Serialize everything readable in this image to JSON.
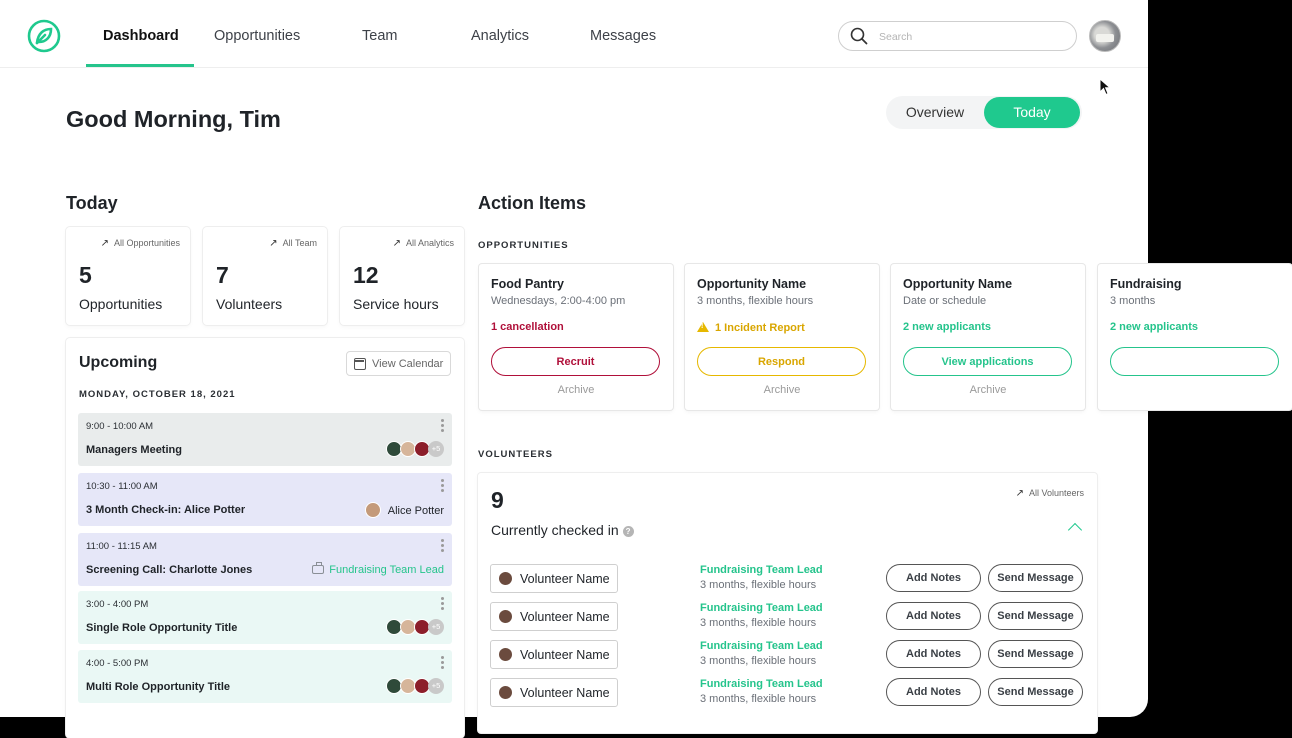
{
  "nav": {
    "tabs": [
      "Dashboard",
      "Opportunities",
      "Team",
      "Analytics",
      "Messages"
    ],
    "active": "Dashboard",
    "search_placeholder": "Search"
  },
  "header": {
    "greeting": "Good Morning, Tim",
    "toggle": {
      "overview": "Overview",
      "today": "Today",
      "selected": "Today"
    }
  },
  "today": {
    "title": "Today",
    "stats": [
      {
        "link": "All Opportunities",
        "value": "5",
        "label": "Opportunities"
      },
      {
        "link": "All Team",
        "value": "7",
        "label": "Volunteers"
      },
      {
        "link": "All Analytics",
        "value": "12",
        "label": "Service hours"
      }
    ]
  },
  "upcoming": {
    "title": "Upcoming",
    "view_calendar": "View Calendar",
    "date": "MONDAY, OCTOBER 18, 2021",
    "events": [
      {
        "time": "9:00 - 10:00 AM",
        "title": "Managers Meeting",
        "extra": "+5",
        "color": "#e9ecec"
      },
      {
        "time": "10:30 - 11:00 AM",
        "title": "3 Month Check-in: Alice Potter",
        "person": "Alice Potter",
        "color": "#e6e7f8"
      },
      {
        "time": "11:00 - 11:15 AM",
        "title": "Screening Call: Charlotte Jones",
        "role": "Fundraising Team Lead",
        "color": "#e6e7f8"
      },
      {
        "time": "3:00 - 4:00 PM",
        "title": "Single Role Opportunity Title",
        "extra": "+5",
        "color": "#eaf8f5"
      },
      {
        "time": "4:00 - 5:00 PM",
        "title": "Multi Role Opportunity Title",
        "extra": "+5",
        "color": "#eaf8f5"
      }
    ]
  },
  "action_items": {
    "title": "Action Items",
    "opportunities_caption": "OPPORTUNITIES",
    "cards": [
      {
        "name": "Food Pantry",
        "sub": "Wednesdays, 2:00-4:00 pm",
        "status": "1 cancellation",
        "status_color": "#b0103a",
        "button": "Recruit",
        "archive": "Archive"
      },
      {
        "name": "Opportunity Name",
        "sub": "3 months, flexible hours",
        "status": "1 Incident Report",
        "status_color": "#d9a600",
        "button": "Respond",
        "archive": "Archive"
      },
      {
        "name": "Opportunity Name",
        "sub": "Date or schedule",
        "status": "2 new applicants",
        "status_color": "#25c48c",
        "button": "View applications",
        "archive": "Archive"
      },
      {
        "name": "Fundraising",
        "sub": "3 months",
        "status": "2 new applicants",
        "status_color": "#25c48c",
        "button": "",
        "archive": ""
      }
    ],
    "volunteers_caption": "VOLUNTEERS",
    "volunteers": {
      "count": "9",
      "all_link": "All Volunteers",
      "checked_in": "Currently checked in",
      "rows": [
        {
          "name": "Volunteer Name",
          "role": "Fundraising Team Lead",
          "sub": "3 months, flexible hours",
          "notes": "Add Notes",
          "message": "Send Message"
        },
        {
          "name": "Volunteer Name",
          "role": "Fundraising Team Lead",
          "sub": "3 months, flexible hours",
          "notes": "Add Notes",
          "message": "Send Message"
        },
        {
          "name": "Volunteer Name",
          "role": "Fundraising Team Lead",
          "sub": "3 months, flexible hours",
          "notes": "Add Notes",
          "message": "Send Message"
        },
        {
          "name": "Volunteer Name",
          "role": "Fundraising Team Lead",
          "sub": "3 months, flexible hours",
          "notes": "Add Notes",
          "message": "Send Message"
        }
      ]
    }
  },
  "colors": {
    "accent": "#1fc98e",
    "danger": "#b0103a",
    "warning": "#e6b800"
  }
}
